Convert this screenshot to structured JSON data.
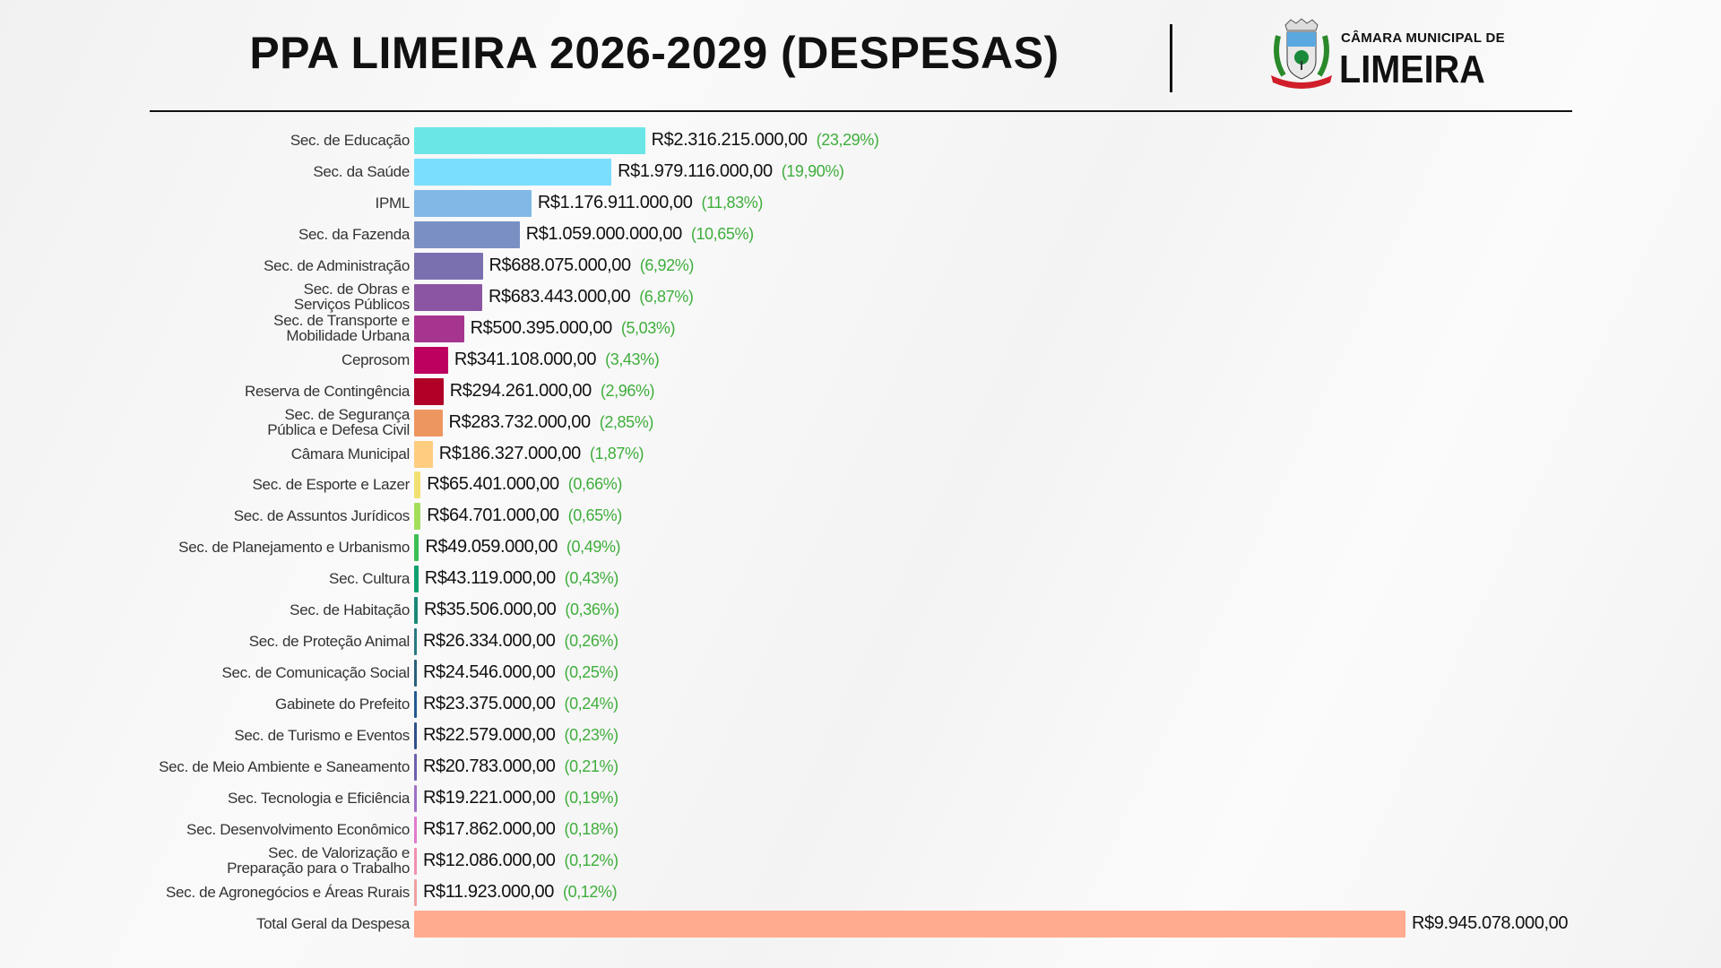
{
  "header": {
    "title": "PPA LIMEIRA 2026-2029 (DESPESAS)",
    "logo": {
      "line1": "CÂMARA MUNICIPAL DE",
      "line2": "LIMEIRA"
    }
  },
  "chart_data": {
    "type": "bar",
    "orientation": "horizontal",
    "title": "PPA LIMEIRA 2026-2029 (DESPESAS)",
    "grid": false,
    "categories": [
      "Sec. de Educação",
      "Sec. da Saúde",
      "IPML",
      "Sec. da Fazenda",
      "Sec. de Administração",
      "Sec. de Obras e\nServiços Públicos",
      "Sec. de Transporte e\nMobilidade Urbana",
      "Ceprosom",
      "Reserva de Contingência",
      "Sec. de Segurança\nPública e Defesa Civil",
      "Câmara Municipal",
      "Sec. de Esporte e Lazer",
      "Sec. de Assuntos Jurídicos",
      "Sec. de Planejamento e Urbanismo",
      "Sec. Cultura",
      "Sec. de Habitação",
      "Sec. de Proteção Animal",
      "Sec. de Comunicação Social",
      "Gabinete do Prefeito",
      "Sec. de Turismo e Eventos",
      "Sec. de Meio Ambiente e Saneamento",
      "Sec. Tecnologia e Eficiência",
      "Sec. Desenvolvimento Econômico",
      "Sec. de Valorização e\nPreparação para o Trabalho",
      "Sec. de Agronegócios e Áreas Rurais",
      "Total Geral da Despesa"
    ],
    "values": [
      2316215000,
      1979116000,
      1176911000,
      1059000000,
      688075000,
      683443000,
      500395000,
      341108000,
      294261000,
      283732000,
      186327000,
      65401000,
      64701000,
      49059000,
      43119000,
      35506000,
      26334000,
      24546000,
      23375000,
      22579000,
      20783000,
      19221000,
      17862000,
      12086000,
      11923000,
      9945078000
    ],
    "value_labels": [
      "R$2.316.215.000,00",
      "R$1.979.116.000,00",
      "R$1.176.911.000,00",
      "R$1.059.000.000,00",
      "R$688.075.000,00",
      "R$683.443.000,00",
      "R$500.395.000,00",
      "R$341.108.000,00",
      "R$294.261.000,00",
      "R$283.732.000,00",
      "R$186.327.000,00",
      "R$65.401.000,00",
      "R$64.701.000,00",
      "R$49.059.000,00",
      "R$43.119.000,00",
      "R$35.506.000,00",
      "R$26.334.000,00",
      "R$24.546.000,00",
      "R$23.375.000,00",
      "R$22.579.000,00",
      "R$20.783.000,00",
      "R$19.221.000,00",
      "R$17.862.000,00",
      "R$12.086.000,00",
      "R$11.923.000,00",
      "R$9.945.078.000,00"
    ],
    "percent_labels": [
      "(23,29%)",
      "(19,90%)",
      "(11,83%)",
      "(10,65%)",
      "(6,92%)",
      "(6,87%)",
      "(5,03%)",
      "(3,43%)",
      "(2,96%)",
      "(2,85%)",
      "(1,87%)",
      "(0,66%)",
      "(0,65%)",
      "(0,49%)",
      "(0,43%)",
      "(0,36%)",
      "(0,26%)",
      "(0,25%)",
      "(0,24%)",
      "(0,23%)",
      "(0,21%)",
      "(0,19%)",
      "(0,18%)",
      "(0,12%)",
      "(0,12%)",
      ""
    ],
    "colors": [
      "#6ae6e6",
      "#7adfff",
      "#80b8e6",
      "#7a90c4",
      "#7a70b0",
      "#8c55a4",
      "#a63590",
      "#bd0060",
      "#b00028",
      "#ee9660",
      "#ffcd80",
      "#f2e070",
      "#a4de5c",
      "#3dbe55",
      "#10a070",
      "#1b8878",
      "#2a7a80",
      "#28607a",
      "#245a94",
      "#30508a",
      "#6a60b0",
      "#a070c8",
      "#e07ad0",
      "#f090b0",
      "#f0a0a0",
      "#ffab90"
    ],
    "xlim": [
      0,
      9945078000
    ]
  }
}
